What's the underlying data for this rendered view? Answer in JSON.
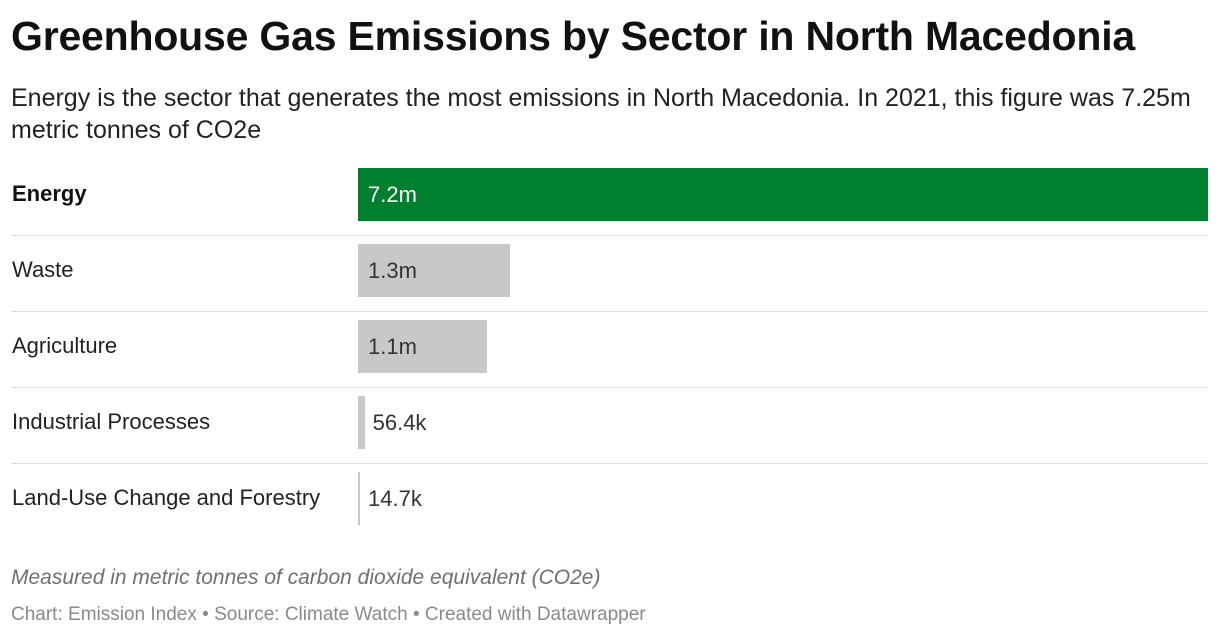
{
  "title": "Greenhouse Gas Emissions by Sector in North Macedonia",
  "subtitle": "Energy is the sector that generates the most emissions in North Macedonia. In 2021, this figure was 7.25m metric tonnes of CO2e",
  "notes": "Measured in metric tonnes of carbon dioxide equivalent (CO2e)",
  "footer": {
    "chart_credit": "Chart: Emission Index",
    "source": "Source: Climate Watch",
    "created_with": "Created with Datawrapper",
    "separator": "•"
  },
  "colors": {
    "highlight": "#00802f",
    "default_bar": "#c8c8c8"
  },
  "chart_data": {
    "type": "bar",
    "orientation": "horizontal",
    "title": "Greenhouse Gas Emissions by Sector in North Macedonia",
    "categories": [
      "Energy",
      "Waste",
      "Agriculture",
      "Industrial Processes",
      "Land-Use Change and Forestry"
    ],
    "values": [
      7250000,
      1300000,
      1100000,
      56400,
      14700
    ],
    "value_labels": [
      "7.2m",
      "1.3m",
      "1.1m",
      "56.4k",
      "14.7k"
    ],
    "highlighted": [
      "Energy"
    ],
    "xlim": [
      0,
      7250000
    ]
  }
}
